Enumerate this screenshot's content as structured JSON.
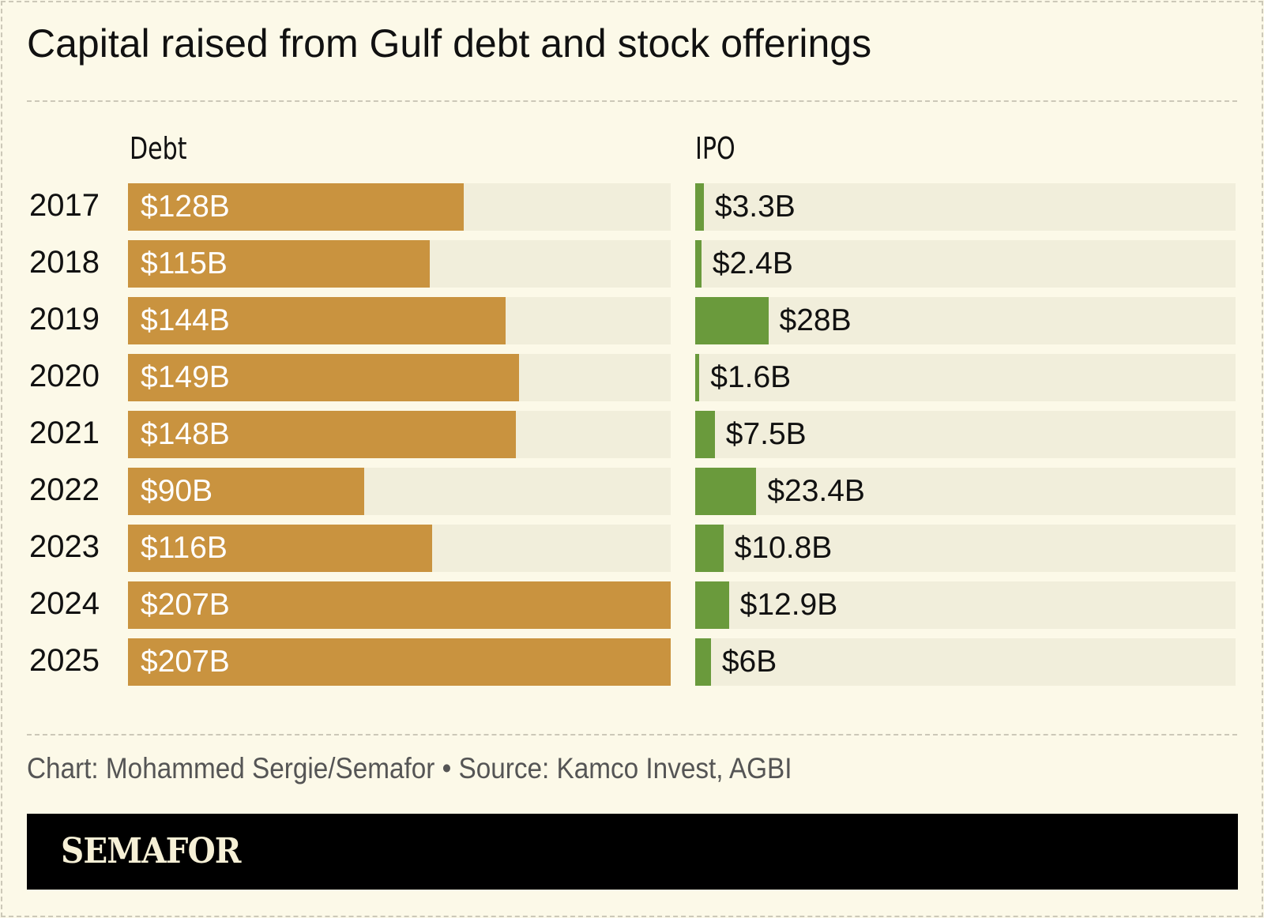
{
  "chart_data": {
    "type": "bar",
    "orientation": "horizontal",
    "title": "Capital raised from Gulf debt and stock offerings",
    "categories": [
      "2017",
      "2018",
      "2019",
      "2020",
      "2021",
      "2022",
      "2023",
      "2024",
      "2025"
    ],
    "series": [
      {
        "name": "Debt",
        "color": "#c9933f",
        "values": [
          128,
          115,
          144,
          149,
          148,
          90,
          116,
          207,
          207
        ],
        "labels": [
          "$128B",
          "$115B",
          "$144B",
          "$149B",
          "$148B",
          "$90B",
          "$116B",
          "$207B",
          "$207B"
        ]
      },
      {
        "name": "IPO",
        "color": "#6a9a3c",
        "values": [
          3.3,
          2.4,
          28,
          1.6,
          7.5,
          23.4,
          10.8,
          12.9,
          6
        ],
        "labels": [
          "$3.3B",
          "$2.4B",
          "$28B",
          "$1.6B",
          "$7.5B",
          "$23.4B",
          "$10.8B",
          "$12.9B",
          "$6B"
        ]
      }
    ],
    "unit": "billion USD",
    "xlim": [
      0,
      207
    ],
    "grid": false
  },
  "footer": {
    "credit": "Chart: Mohammed Sergie/Semafor • Source: Kamco Invest, AGBI",
    "brand": "SEMAFOR"
  },
  "colors": {
    "background": "#fcf9e8",
    "track": "#f1eedb"
  }
}
